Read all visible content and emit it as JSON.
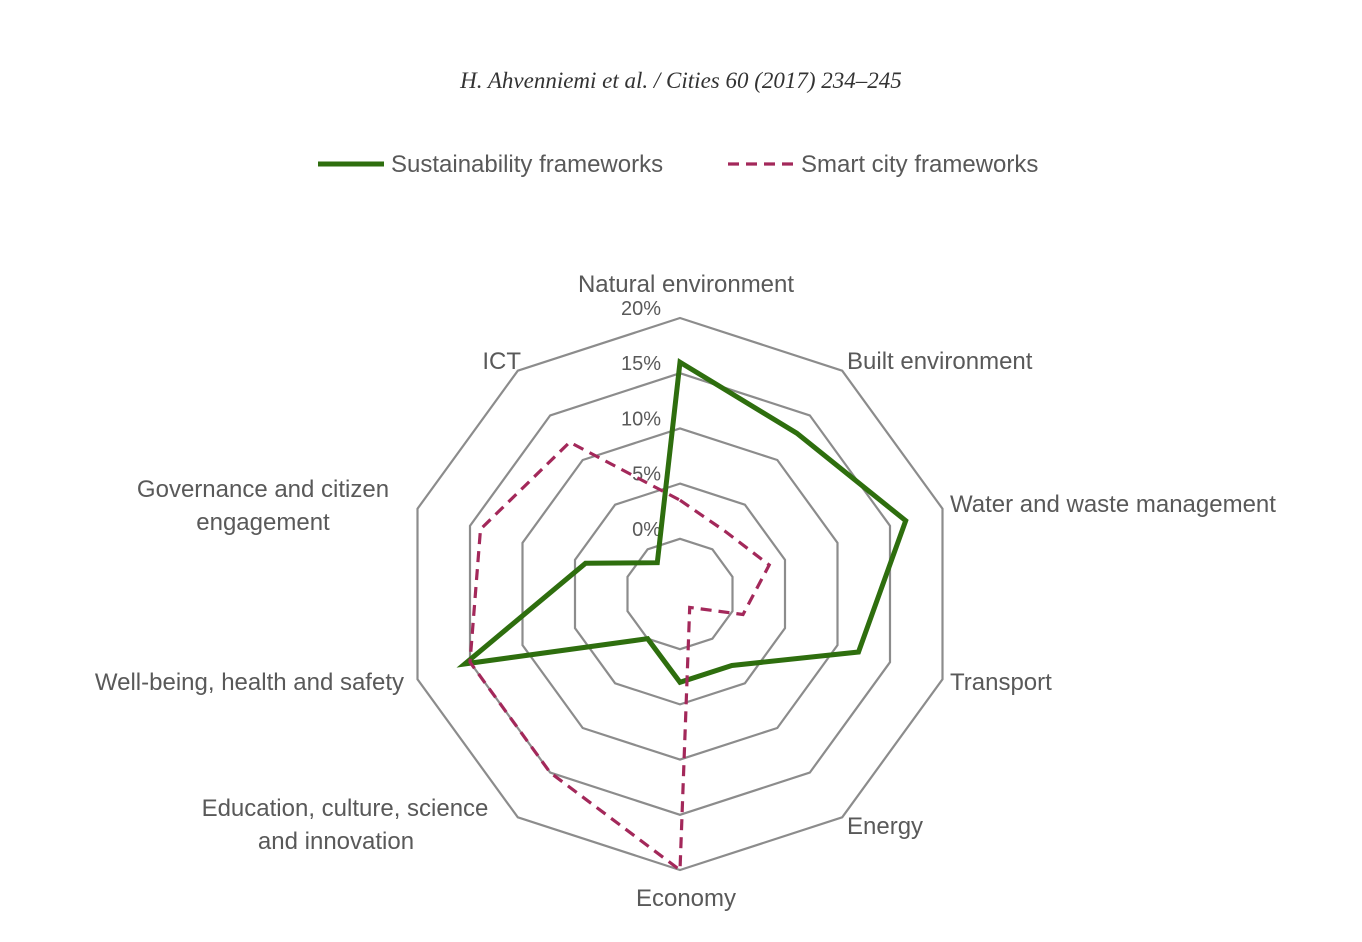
{
  "header": {
    "citation": "H. Ahvenniemi et al. / Cities 60 (2017) 234–245"
  },
  "chart_data": {
    "type": "radar",
    "title": "",
    "categories": [
      [
        "Natural environment"
      ],
      [
        "Built environment"
      ],
      [
        "Water and waste management"
      ],
      [
        "Transport"
      ],
      [
        "Energy"
      ],
      [
        "Economy"
      ],
      [
        "Education, culture, science",
        "and innovation"
      ],
      [
        "Well-being, health and safety"
      ],
      [
        "Governance and citizen",
        "engagement"
      ],
      [
        "ICT"
      ]
    ],
    "radial_ticks": [
      "0%",
      "5%",
      "10%",
      "15%",
      "20%"
    ],
    "radial_tick_values": [
      0,
      5,
      10,
      15,
      20
    ],
    "rmin": -5,
    "rmax": 20,
    "legend_position": "top",
    "series": [
      {
        "name": "Sustainability frameworks",
        "color": "#2e6e0e",
        "style": "solid",
        "values": [
          16,
          13,
          16.5,
          12,
          3,
          3,
          0,
          15.5,
          4,
          -1.5
        ]
      },
      {
        "name": "Smart city frameworks",
        "color": "#a3285a",
        "style": "dashed",
        "values": [
          3.5,
          2,
          3.5,
          1,
          -3.5,
          20,
          15,
          15,
          14,
          12
        ]
      }
    ]
  }
}
